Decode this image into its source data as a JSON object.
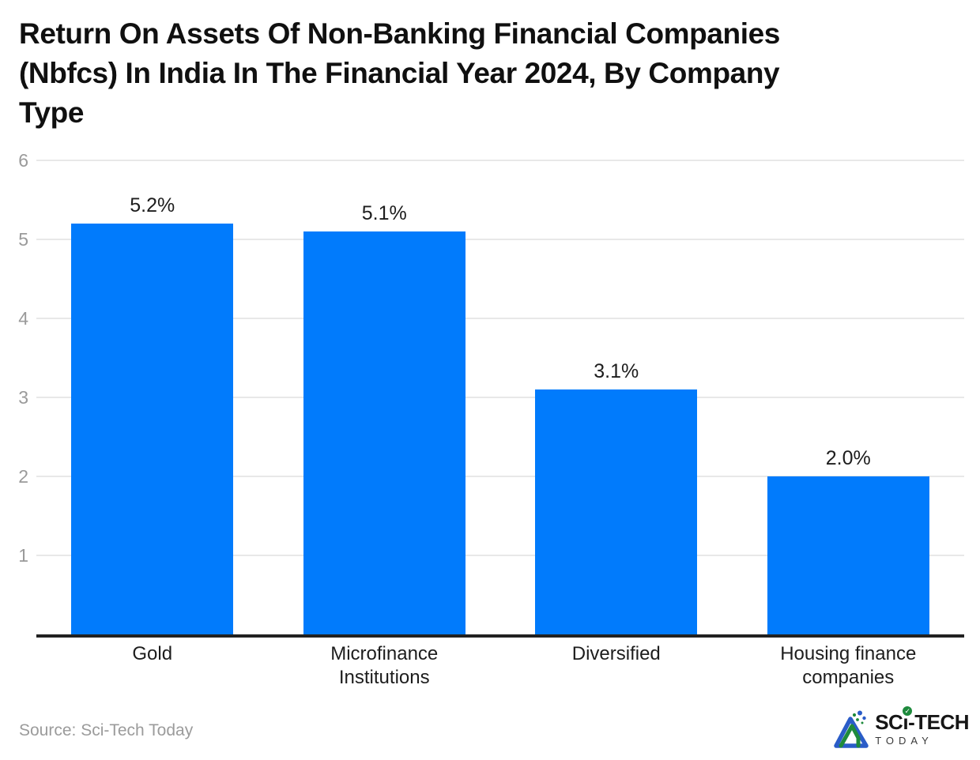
{
  "header": {
    "title_lines": [
      "Return On Assets Of Non-Banking Financial Companies",
      "(Nbfcs) In India In The Financial Year 2024, By Company",
      "Type"
    ]
  },
  "chart_data": {
    "type": "bar",
    "title": "Return On Assets Of Non-Banking Financial Companies (Nbfcs) In India In The Financial Year 2024, By Company Type",
    "categories": [
      "Gold",
      "Microfinance\nInstitutions",
      "Diversified",
      "Housing finance\ncompanies"
    ],
    "values": [
      5.2,
      5.1,
      3.1,
      2.0
    ],
    "data_labels": [
      "5.2%",
      "5.1%",
      "3.1%",
      "2.0%"
    ],
    "unit": "%",
    "ylim": [
      0,
      6
    ],
    "yticks": [
      1,
      2,
      3,
      4,
      5,
      6
    ],
    "grid": true,
    "legend": false,
    "xlabel": "",
    "ylabel": ""
  },
  "colors": {
    "bar": "#017BFC",
    "grid": "#e8e8e8",
    "axis": "#212121",
    "ytick": "#9a9a9a"
  },
  "footer": {
    "source": "Source: Sci-Tech Today",
    "logo": {
      "part1": "SC",
      "i_char": "ı",
      "check_glyph": "✓",
      "part2": "-TECH",
      "subtitle": "TODAY"
    }
  }
}
